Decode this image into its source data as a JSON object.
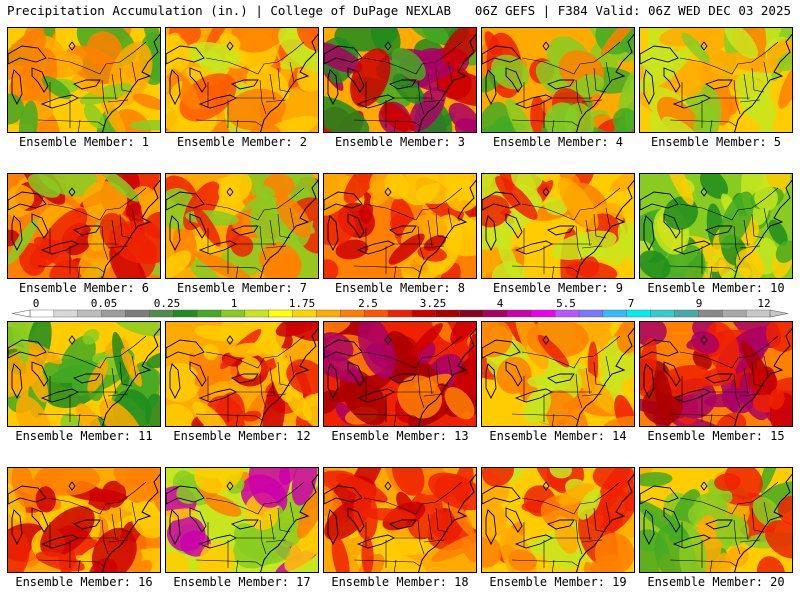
{
  "header": {
    "title_left": "Precipitation Accumulation (in.) | College of DuPage NEXLAB",
    "title_right": "06Z GEFS | F384 Valid: 06Z WED DEC 03 2025"
  },
  "legend": {
    "tick_labels": [
      "0",
      "0.05",
      "0.25",
      "1",
      "1.75",
      "2.5",
      "3.25",
      "4",
      "5.5",
      "7",
      "9",
      "12"
    ],
    "swatch_colors": [
      "#ffffff",
      "#d8d8d8",
      "#bcbcbc",
      "#9c9c9c",
      "#7c7c7c",
      "#4c8c4c",
      "#1e8c1e",
      "#44aa22",
      "#88cc22",
      "#c8e61e",
      "#ffff00",
      "#ffd400",
      "#ffaa00",
      "#ff8000",
      "#ff5500",
      "#ee2200",
      "#cc0000",
      "#aa0000",
      "#880022",
      "#aa0066",
      "#cc00aa",
      "#ee00ee",
      "#bb55ff",
      "#7777ff",
      "#33bbff",
      "#00eeee",
      "#33cccc",
      "#44aaaa",
      "#888888",
      "#a8a8a8",
      "#c8c8c8"
    ]
  },
  "members": [
    {
      "label": "Ensemble Member: 1",
      "palette": [
        "#ffcc00",
        "#88cc22",
        "#44aa22",
        "#ffaa00",
        "#ff8000"
      ]
    },
    {
      "label": "Ensemble Member: 2",
      "palette": [
        "#ffaa00",
        "#ffcc00",
        "#ff8000",
        "#c8e61e",
        "#ff5500"
      ]
    },
    {
      "label": "Ensemble Member: 3",
      "palette": [
        "#ffaa00",
        "#44aa22",
        "#1e8c1e",
        "#cc0000",
        "#aa0066"
      ]
    },
    {
      "label": "Ensemble Member: 4",
      "palette": [
        "#ffaa00",
        "#ff8000",
        "#ee2200",
        "#88cc22",
        "#44aa22"
      ]
    },
    {
      "label": "Ensemble Member: 5",
      "palette": [
        "#ffcc00",
        "#ffaa00",
        "#88cc22",
        "#ff8000",
        "#c8e61e"
      ]
    },
    {
      "label": "Ensemble Member: 6",
      "palette": [
        "#ff8000",
        "#ee2200",
        "#ffaa00",
        "#88cc22",
        "#cc0000"
      ]
    },
    {
      "label": "Ensemble Member: 7",
      "palette": [
        "#ffaa00",
        "#ff8000",
        "#ee2200",
        "#ffcc00",
        "#88cc22"
      ]
    },
    {
      "label": "Ensemble Member: 8",
      "palette": [
        "#ff8000",
        "#ee2200",
        "#ffaa00",
        "#ffcc00",
        "#cc0000"
      ]
    },
    {
      "label": "Ensemble Member: 9",
      "palette": [
        "#ffcc00",
        "#ffaa00",
        "#c8e61e",
        "#ff8000",
        "#ee2200"
      ]
    },
    {
      "label": "Ensemble Member: 10",
      "palette": [
        "#88cc22",
        "#44aa22",
        "#ffcc00",
        "#c8e61e",
        "#1e8c1e"
      ]
    },
    {
      "label": "Ensemble Member: 11",
      "palette": [
        "#ffcc00",
        "#88cc22",
        "#44aa22",
        "#ffaa00",
        "#1e8c1e"
      ]
    },
    {
      "label": "Ensemble Member: 12",
      "palette": [
        "#ffaa00",
        "#ff8000",
        "#ee2200",
        "#ffcc00",
        "#cc0000"
      ]
    },
    {
      "label": "Ensemble Member: 13",
      "palette": [
        "#ee2200",
        "#cc0000",
        "#ff8000",
        "#aa0000",
        "#aa0066"
      ]
    },
    {
      "label": "Ensemble Member: 14",
      "palette": [
        "#ffcc00",
        "#ffaa00",
        "#ff8000",
        "#c8e61e",
        "#ee2200"
      ]
    },
    {
      "label": "Ensemble Member: 15",
      "palette": [
        "#ff8000",
        "#ee2200",
        "#cc0000",
        "#aa0000",
        "#aa0066"
      ]
    },
    {
      "label": "Ensemble Member: 16",
      "palette": [
        "#ffaa00",
        "#ff8000",
        "#ee2200",
        "#ffcc00",
        "#cc0000"
      ]
    },
    {
      "label": "Ensemble Member: 17",
      "palette": [
        "#c8e61e",
        "#ffcc00",
        "#88cc22",
        "#ff8000",
        "#cc00aa"
      ]
    },
    {
      "label": "Ensemble Member: 18",
      "palette": [
        "#ffaa00",
        "#ff8000",
        "#ee2200",
        "#ffcc00",
        "#cc0000"
      ]
    },
    {
      "label": "Ensemble Member: 19",
      "palette": [
        "#ffcc00",
        "#ffaa00",
        "#ff8000",
        "#ee2200",
        "#c8e61e"
      ]
    },
    {
      "label": "Ensemble Member: 20",
      "palette": [
        "#ffcc00",
        "#88cc22",
        "#44aa22",
        "#ffaa00",
        "#ee2200"
      ]
    }
  ]
}
